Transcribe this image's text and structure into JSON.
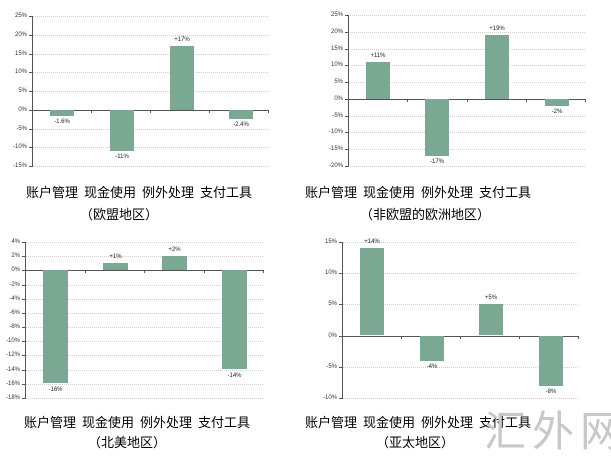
{
  "chart_data": [
    {
      "type": "bar",
      "title": "欧盟地区",
      "region_label": "（欧盟地区）",
      "categories": [
        "账户管理",
        "现金使用",
        "例外处理",
        "支付工具"
      ],
      "values": [
        -1.6,
        -11,
        17,
        -2.4
      ],
      "value_labels": [
        "-1.6%",
        "-11%",
        "+17%",
        "-2.4%"
      ],
      "yticks": [
        25,
        20,
        15,
        10,
        5,
        0,
        -5,
        -10,
        -15
      ],
      "ytick_labels": [
        "25%",
        "20%",
        "15%",
        "10%",
        "5%",
        "0%",
        "-5%",
        "-10%",
        "-15%"
      ],
      "ylim": [
        -15,
        25
      ],
      "grid": true,
      "xlabel": "",
      "ylabel": "",
      "bar_color": "#7aa892"
    },
    {
      "type": "bar",
      "title": "非欧盟的欧洲地区",
      "region_label": "（非欧盟的欧洲地区）",
      "categories": [
        "账户管理",
        "现金使用",
        "例外处理",
        "支付工具"
      ],
      "values": [
        11,
        -17,
        19,
        -2
      ],
      "value_labels": [
        "+11%",
        "-17%",
        "+19%",
        "-2%"
      ],
      "yticks": [
        25,
        20,
        15,
        10,
        5,
        0,
        -5,
        -10,
        -15,
        -20
      ],
      "ytick_labels": [
        "25%",
        "20%",
        "15%",
        "10%",
        "5%",
        "0%",
        "-5%",
        "-10%",
        "-15%",
        "-20%"
      ],
      "ylim": [
        -20,
        25
      ],
      "grid": true,
      "xlabel": "",
      "ylabel": "",
      "bar_color": "#7aa892"
    },
    {
      "type": "bar",
      "title": "北美地区",
      "region_label": "（北美地区）",
      "categories": [
        "账户管理",
        "现金使用",
        "例外处理",
        "支付工具"
      ],
      "values": [
        -16,
        1,
        2,
        -14
      ],
      "value_labels": [
        "-16%",
        "+1%",
        "+2%",
        "-14%"
      ],
      "yticks": [
        4,
        2,
        0,
        -2,
        -4,
        -6,
        -8,
        -10,
        -12,
        -14,
        -16,
        -18
      ],
      "ytick_labels": [
        "4%",
        "2%",
        "0%",
        "-2%",
        "-4%",
        "-6%",
        "-8%",
        "-10%",
        "-12%",
        "-14%",
        "-16%",
        "-18%"
      ],
      "ylim": [
        -18,
        4
      ],
      "grid": true,
      "xlabel": "",
      "ylabel": "",
      "bar_color": "#7aa892"
    },
    {
      "type": "bar",
      "title": "亚太地区",
      "region_label": "（亚太地区）",
      "categories": [
        "账户管理",
        "现金使用",
        "例外处理",
        "支付工具"
      ],
      "values": [
        14,
        -4,
        5,
        -8
      ],
      "value_labels": [
        "+14%",
        "-4%",
        "+5%",
        "-8%"
      ],
      "yticks": [
        15,
        10,
        5,
        0,
        -5,
        -10
      ],
      "ytick_labels": [
        "15%",
        "10%",
        "5%",
        "0%",
        "-5%",
        "-10%"
      ],
      "ylim": [
        -10,
        15
      ],
      "grid": true,
      "xlabel": "",
      "ylabel": "",
      "bar_color": "#7aa892"
    }
  ],
  "panels": [
    {
      "region": "（欧盟地区）"
    },
    {
      "region": "（非欧盟的欧洲地区）"
    },
    {
      "region": "（北美地区）"
    },
    {
      "region": "（亚太地区）"
    }
  ],
  "categories": [
    "账户管理",
    "现金使用",
    "例外处理",
    "支付工具"
  ],
  "watermark": "汇外网"
}
